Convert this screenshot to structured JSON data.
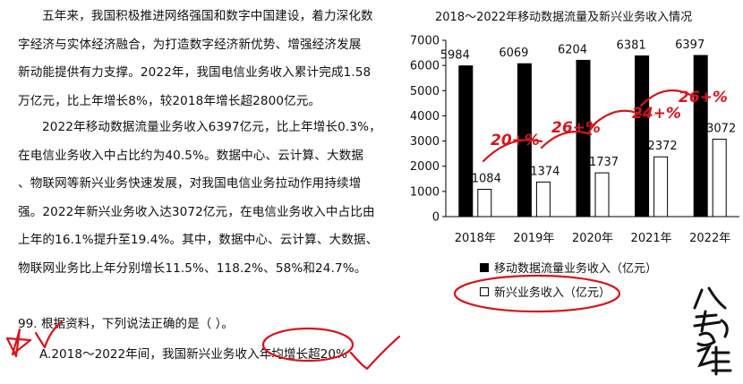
{
  "passage": {
    "p1": [
      "五年来，我国积极推进网络强国和数字中国建设，着力深化数",
      "字经济与实体经济融合，为打造数字经济新优势、增强经济发展",
      "新动能提供有力支撑。2022年，我国电信业务收入累计完成1.58",
      "万亿元，比上年增长8%，较2018年增长超2800亿元。"
    ],
    "p2": [
      "2022年移动数据流量业务收入6397亿元，比上年增长0.3%，",
      "在电信业务收入中占比约为40.5%。数据中心、云计算、大数据",
      "、物联网等新兴业务快速发展，对我国电信业务拉动作用持续增",
      "强。2022年新兴业务收入达3072亿元，在电信业务收入中占比由",
      "上年的16.1%提升至19.4%。其中，数据中心、云计算、大数据、",
      "物联网业务比上年分别增长11.5%、118.2%、58%和24.7%。"
    ]
  },
  "question": {
    "stem": "99. 根据资料，下列说法正确的是（ ）。",
    "option_a": "A.2018～2022年间，我国新兴业务收入年均增长超20%"
  },
  "annotations": {
    "growth_marks": [
      "20+%",
      "26+%",
      "24+%",
      "26+%"
    ]
  },
  "chart_data": {
    "type": "bar",
    "title": "2018～2022年移动数据流量及新兴业务收入情况",
    "categories": [
      "2018年",
      "2019年",
      "2020年",
      "2021年",
      "2022年"
    ],
    "series": [
      {
        "name": "移动数据流量业务收入（亿元）",
        "values": [
          5984,
          6069,
          6204,
          6381,
          6397
        ],
        "color": "#000000"
      },
      {
        "name": "新兴业务收入（亿元）",
        "values": [
          1084,
          1374,
          1737,
          2372,
          3072
        ],
        "color": "#ffffff"
      }
    ],
    "ylim": [
      0,
      7000
    ],
    "yticks": [
      "0",
      "1000",
      "2000",
      "3000",
      "4000",
      "5000",
      "6000",
      "7000"
    ],
    "legend_position": "bottom",
    "grid": false
  },
  "colors": {
    "ink": "#d9141b",
    "bar_dark": "#000000",
    "bar_light": "#ffffff"
  },
  "brand_icon": "calligraphy-logo"
}
